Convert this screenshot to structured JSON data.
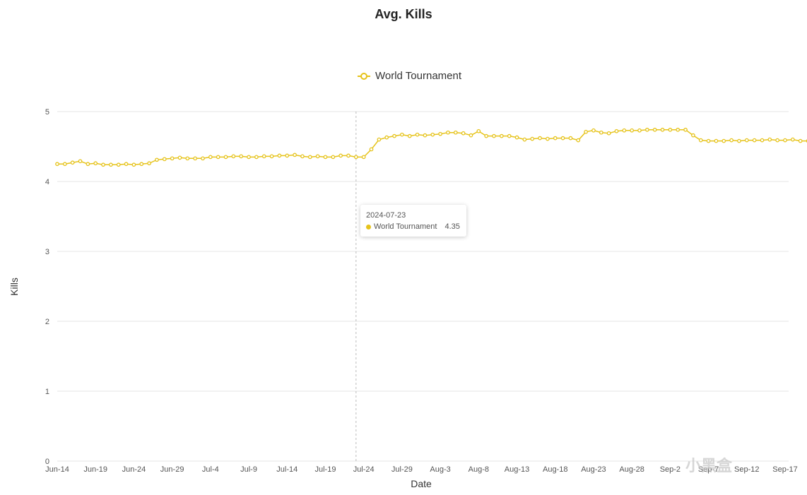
{
  "colors": {
    "series": "#e6c31a",
    "grid": "#e6e6e6",
    "crosshair": "#bbbbbb"
  },
  "legend": {
    "label": "World Tournament",
    "icon": "hollow-circle-line-icon"
  },
  "tooltip": {
    "date": "2024-07-23",
    "series": "World Tournament",
    "value": "4.35"
  },
  "watermark": {
    "text": "小黑盒"
  },
  "chart_data": {
    "type": "line",
    "title": "Avg. Kills",
    "xlabel": "Date",
    "ylabel": "Kills",
    "ylim": [
      0,
      5
    ],
    "yticks": [
      0,
      1,
      2,
      3,
      4,
      5
    ],
    "grid": true,
    "legend_position": "top-center",
    "x_tick_labels": [
      "Jun-14",
      "Jun-19",
      "Jun-24",
      "Jun-29",
      "Jul-4",
      "Jul-9",
      "Jul-14",
      "Jul-19",
      "Jul-24",
      "Jul-29",
      "Aug-3",
      "Aug-8",
      "Aug-13",
      "Aug-18",
      "Aug-23",
      "Aug-28",
      "Sep-2",
      "Sep-7",
      "Sep-12",
      "Sep-17"
    ],
    "x_start": "2024-06-14",
    "x_end": "2024-09-17",
    "series": [
      {
        "name": "World Tournament",
        "values": [
          4.25,
          4.25,
          4.27,
          4.29,
          4.25,
          4.26,
          4.24,
          4.24,
          4.24,
          4.25,
          4.24,
          4.25,
          4.26,
          4.31,
          4.32,
          4.33,
          4.34,
          4.33,
          4.33,
          4.33,
          4.35,
          4.35,
          4.35,
          4.36,
          4.36,
          4.35,
          4.35,
          4.36,
          4.36,
          4.37,
          4.37,
          4.38,
          4.36,
          4.35,
          4.36,
          4.35,
          4.35,
          4.37,
          4.37,
          4.35,
          4.35,
          4.46,
          4.6,
          4.63,
          4.65,
          4.67,
          4.65,
          4.67,
          4.66,
          4.67,
          4.68,
          4.7,
          4.7,
          4.69,
          4.66,
          4.72,
          4.65,
          4.65,
          4.65,
          4.65,
          4.63,
          4.6,
          4.61,
          4.62,
          4.61,
          4.62,
          4.62,
          4.62,
          4.59,
          4.71,
          4.73,
          4.7,
          4.69,
          4.72,
          4.73,
          4.73,
          4.73,
          4.74,
          4.74,
          4.74,
          4.74,
          4.74,
          4.74,
          4.66,
          4.59,
          4.58,
          4.58,
          4.58,
          4.59,
          4.58,
          4.59,
          4.59,
          4.59,
          4.6,
          4.59,
          4.59,
          4.6,
          4.58,
          4.58,
          4.61
        ]
      }
    ],
    "highlight": {
      "date": "2024-07-23",
      "value": 4.35
    }
  }
}
